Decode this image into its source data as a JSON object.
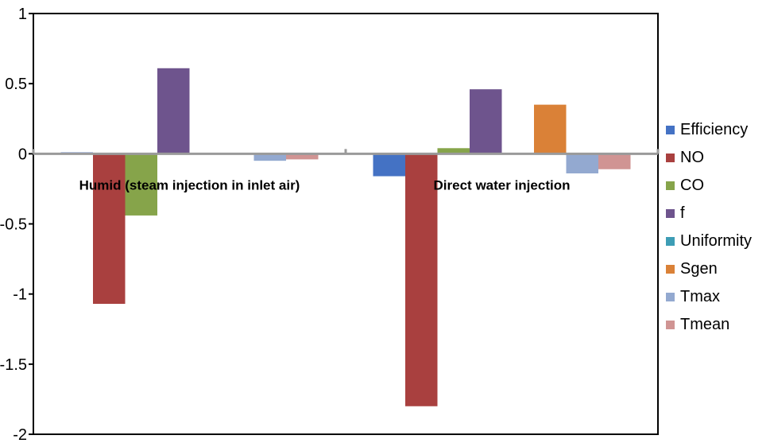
{
  "chart_data": {
    "type": "bar",
    "categories": [
      "Humid (steam injection in inlet air)",
      "Direct water injection"
    ],
    "series": [
      {
        "name": "Efficiency",
        "color": "#4472C4",
        "values": [
          0.01,
          -0.16
        ]
      },
      {
        "name": "NO",
        "color": "#A9403F",
        "values": [
          -1.07,
          -1.8
        ]
      },
      {
        "name": "CO",
        "color": "#86A44A",
        "values": [
          -0.44,
          0.04
        ]
      },
      {
        "name": "f",
        "color": "#6E548D",
        "values": [
          0.61,
          0.46
        ]
      },
      {
        "name": "Uniformity",
        "color": "#3D9DB5",
        "values": [
          0.0,
          0.0
        ]
      },
      {
        "name": "Sgen",
        "color": "#DA8137",
        "values": [
          0.0,
          0.35
        ]
      },
      {
        "name": "Tmax",
        "color": "#93A9D0",
        "values": [
          -0.05,
          -0.14
        ]
      },
      {
        "name": "Tmean",
        "color": "#D09493",
        "values": [
          -0.04,
          -0.11
        ]
      }
    ],
    "ylim": [
      -2,
      1
    ],
    "yticks": [
      "1",
      "0.5",
      "0",
      "-0.5",
      "-1",
      "-1.5",
      "-2"
    ],
    "legend_position": "right",
    "grid": false
  }
}
